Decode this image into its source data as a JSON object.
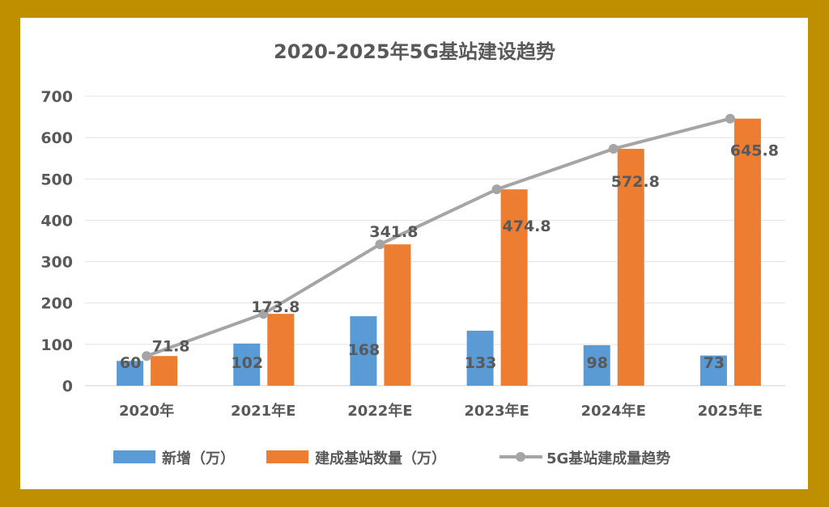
{
  "chart_data": {
    "type": "bar",
    "title": "2020-2025年5G基站建设趋势",
    "categories": [
      "2020年",
      "2021年E",
      "2022年E",
      "2023年E",
      "2024年E",
      "2025年E"
    ],
    "ylim": [
      0,
      700
    ],
    "yticks": [
      0,
      100,
      200,
      300,
      400,
      500,
      600,
      700
    ],
    "grid": true,
    "legend_position": "bottom",
    "series": [
      {
        "name": "新增（万）",
        "kind": "bar",
        "color": "#5B9BD5",
        "values": [
          60,
          102,
          168,
          133,
          98,
          73
        ],
        "labels": [
          "60",
          "102",
          "168",
          "133",
          "98",
          "73"
        ]
      },
      {
        "name": "建成基站数量（万）",
        "kind": "bar",
        "color": "#ED7D31",
        "values": [
          71.8,
          173.8,
          341.8,
          474.8,
          572.8,
          645.8
        ],
        "labels": [
          "71.8",
          "173.8",
          "341.8",
          "474.8",
          "572.8",
          "645.8"
        ]
      },
      {
        "name": "5G基站建成量趋势",
        "kind": "line",
        "color": "#A5A5A5",
        "values": [
          71.8,
          173.8,
          341.8,
          474.8,
          572.8,
          645.8
        ]
      }
    ]
  }
}
